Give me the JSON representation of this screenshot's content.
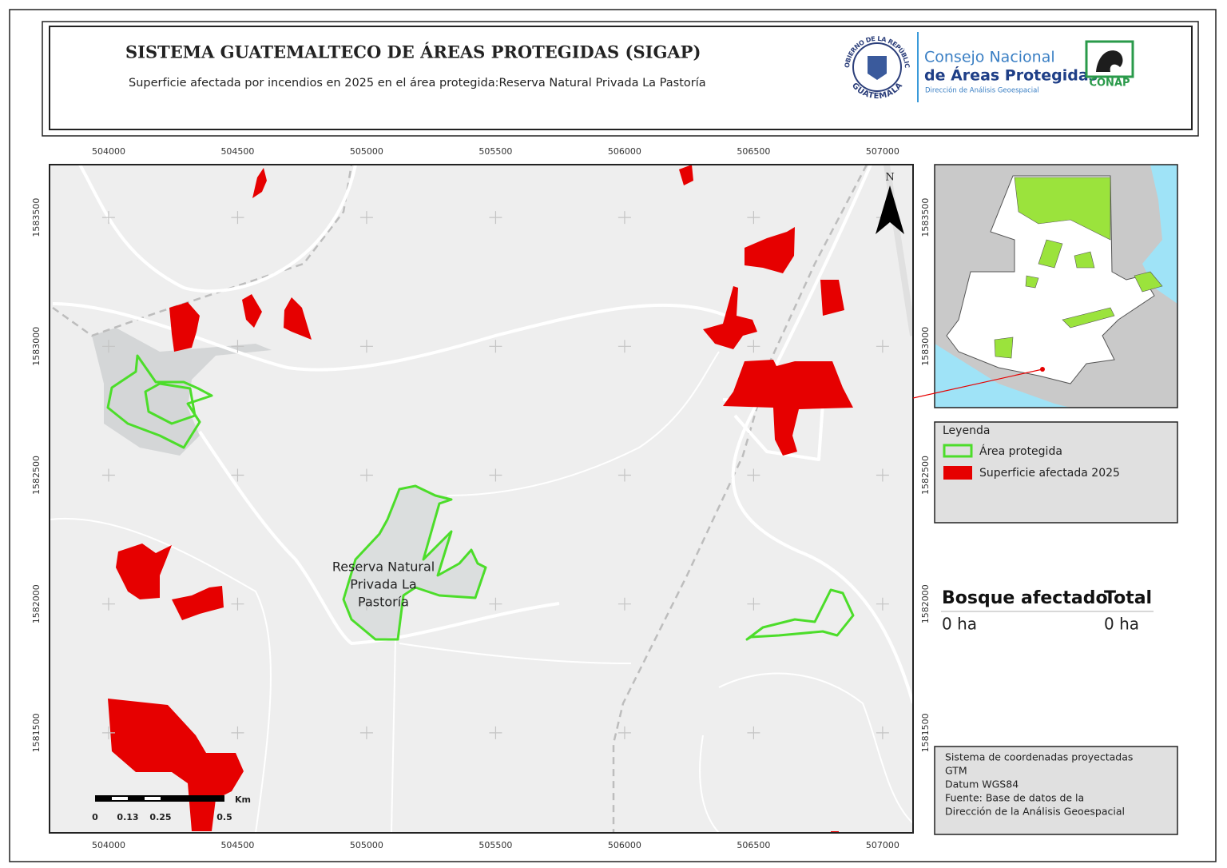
{
  "header": {
    "title": "SISTEMA GUATEMALTECO DE ÁREAS PROTEGIDAS  (SIGAP)",
    "subtitle": "Superficie afectada por incendios en 2025 en el área protegida:Reserva Natural Privada La Pastoría"
  },
  "logos": {
    "emblem_top": "GOBIERNO DE LA REPÚBLICA",
    "emblem_bottom": "GUATEMALA",
    "org_line1": "Consejo Nacional",
    "org_line2": "de Áreas Protegidas",
    "org_line3": "Dirección de Análisis Geoespacial",
    "acronym": "CONAP"
  },
  "map": {
    "xlim": [
      503771,
      507118
    ],
    "ylim": [
      1581112,
      1583705
    ],
    "xticks": [
      504000,
      504500,
      505000,
      505500,
      506000,
      506500,
      507000
    ],
    "yticks": [
      1581500,
      1582000,
      1582500,
      1583000,
      1583500
    ],
    "north": "N",
    "place_label": [
      "Reserva Natural",
      "Privada La",
      "Pastoría"
    ],
    "scale_bar": {
      "unit": "Km",
      "labels": [
        "0",
        "0.13",
        "0.25",
        "0.5"
      ]
    }
  },
  "legend": {
    "title": "Leyenda",
    "items": [
      {
        "label": "Área protegida",
        "color": "#4cdd2a"
      },
      {
        "label": "Superficie afectada 2025",
        "color": "#e60000"
      }
    ]
  },
  "summary": {
    "headers": [
      "Bosque afectado",
      "Total"
    ],
    "rows": [
      [
        "0 ha",
        "0 ha"
      ]
    ]
  },
  "notes": [
    "Sistema de coordenadas proyectadas",
    "GTM",
    "Datum WGS84",
    "Fuente: Base de datos de la",
    "Dirección de la Análisis Geoespacial"
  ]
}
